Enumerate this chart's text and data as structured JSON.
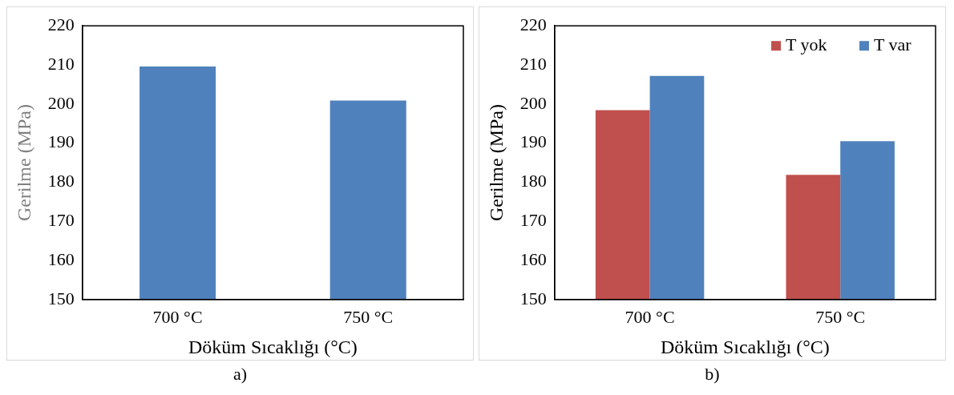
{
  "chart_data": [
    {
      "type": "bar",
      "xlabel": "Döküm Sıcaklığı (°C)",
      "ylabel": "Gerilme (MPa)",
      "categories": [
        "700 °C",
        "750 °C"
      ],
      "values": [
        209.6,
        200.9
      ],
      "color": "#4f81bd",
      "ylim": [
        150,
        220
      ],
      "yticks": [
        150,
        160,
        170,
        180,
        190,
        200,
        210,
        220
      ],
      "grid": false,
      "legend": false,
      "annotations": [
        "a)"
      ]
    },
    {
      "type": "bar",
      "xlabel": "Döküm Sıcaklığı (°C)",
      "ylabel": "Gerilme (MPa)",
      "categories": [
        "700 °C",
        "750 °C"
      ],
      "series": [
        {
          "name": "T yok",
          "color": "#c0504d",
          "values": [
            198.4,
            181.9
          ]
        },
        {
          "name": "T var",
          "color": "#4f81bd",
          "values": [
            207.2,
            190.5
          ]
        }
      ],
      "ylim": [
        150,
        220
      ],
      "yticks": [
        150,
        160,
        170,
        180,
        190,
        200,
        210,
        220
      ],
      "grid": false,
      "legend": "top right",
      "annotations": [
        "b)"
      ]
    }
  ]
}
